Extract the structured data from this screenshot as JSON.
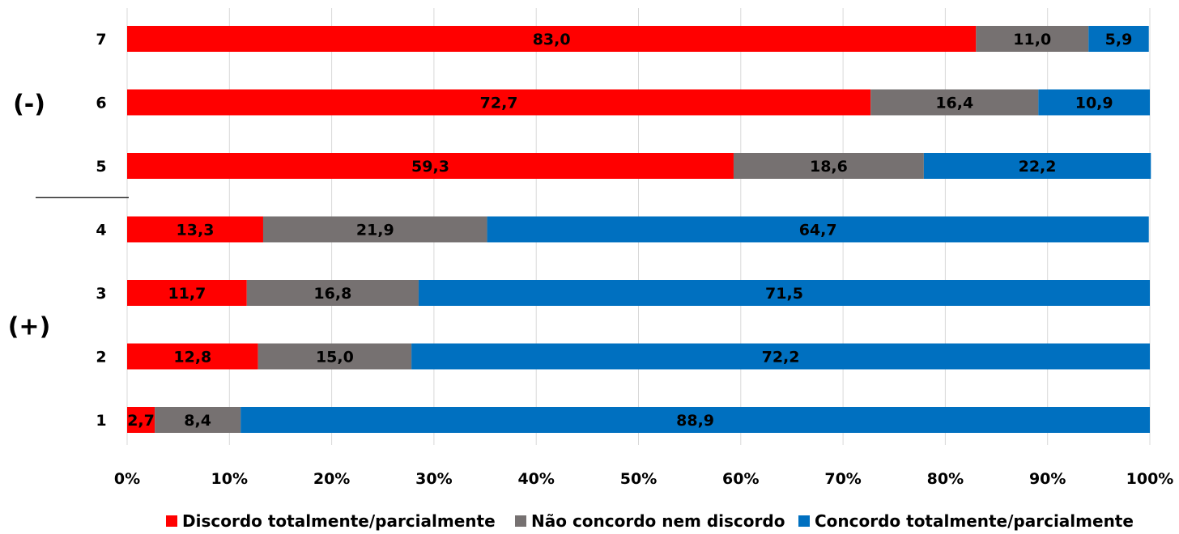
{
  "chart_data": {
    "type": "bar",
    "orientation": "horizontal",
    "stacked": "percent",
    "categories": [
      "7",
      "6",
      "5",
      "4",
      "3",
      "2",
      "1"
    ],
    "series": [
      {
        "name": "Discordo totalmente/parcialmente",
        "color": "#ff0000",
        "values": [
          83.0,
          72.7,
          59.3,
          13.3,
          11.7,
          12.8,
          2.7
        ],
        "labels": [
          "83,0",
          "72,7",
          "59,3",
          "13,3",
          "11,7",
          "12,8",
          "2,7"
        ]
      },
      {
        "name": "Não concordo nem discordo",
        "color": "#767171",
        "values": [
          11.0,
          16.4,
          18.6,
          21.9,
          16.8,
          15.0,
          8.4
        ],
        "labels": [
          "11,0",
          "16,4",
          "18,6",
          "21,9",
          "16,8",
          "15,0",
          "8,4"
        ]
      },
      {
        "name": "Concordo totalmente/parcialmente",
        "color": "#0070c0",
        "values": [
          5.9,
          10.9,
          22.2,
          64.7,
          71.5,
          72.2,
          88.9
        ],
        "labels": [
          "5,9",
          "10,9",
          "22,2",
          "64,7",
          "71,5",
          "72,2",
          "88,9"
        ]
      }
    ],
    "x_ticks": [
      "0%",
      "10%",
      "20%",
      "30%",
      "40%",
      "50%",
      "60%",
      "70%",
      "80%",
      "90%",
      "100%"
    ],
    "xlim": [
      0,
      100
    ],
    "grid": true,
    "legend_position": "bottom",
    "group_labels": [
      {
        "text": "(-)",
        "categories": [
          "7",
          "6",
          "5"
        ]
      },
      {
        "text": "(+)",
        "categories": [
          "4",
          "3",
          "2",
          "1"
        ]
      }
    ]
  }
}
